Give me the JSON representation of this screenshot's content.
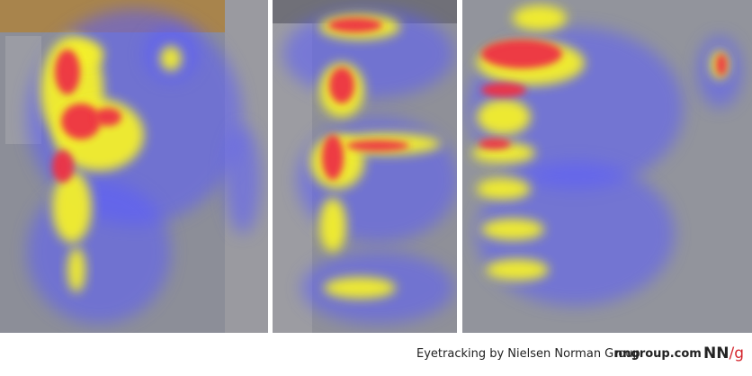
{
  "footer": {
    "credit": "Eyetracking by Nielsen Norman Group",
    "site": "nngroup.com",
    "logo_nn": "NN",
    "logo_g": "/g"
  }
}
